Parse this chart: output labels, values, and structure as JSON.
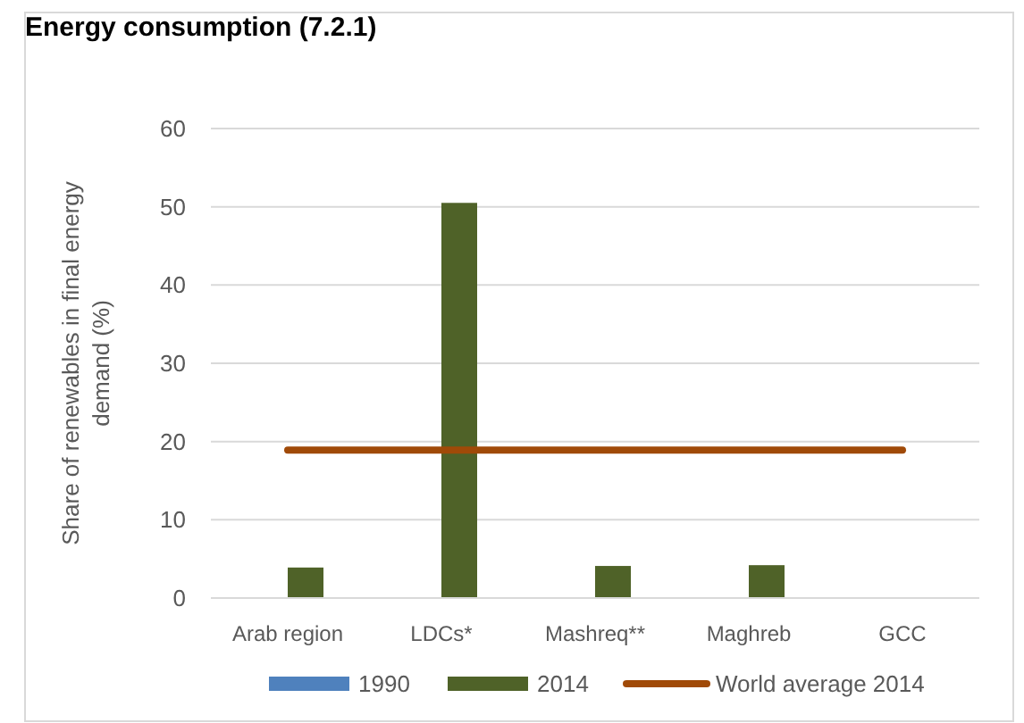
{
  "chart_data": {
    "type": "bar",
    "title": "Energy consumption (7.2.1)",
    "ylabel": "Share of renewables in final energy demand (%)",
    "categories": [
      "Arab region",
      "LDCs*",
      "Mashreq**",
      "Maghreb",
      "GCC"
    ],
    "series": [
      {
        "name": "1990",
        "color": "#4f81bd",
        "values": [
          null,
          null,
          null,
          null,
          null
        ]
      },
      {
        "name": "2014",
        "color": "#4f6228",
        "values": [
          3.9,
          50.5,
          4.1,
          4.2,
          0
        ]
      },
      {
        "name": "World average 2014",
        "type": "line",
        "color": "#a04a08",
        "values": [
          18.9,
          18.9,
          18.9,
          18.9,
          18.9
        ]
      }
    ],
    "ylim": [
      0,
      60
    ],
    "yticks": [
      0,
      10,
      20,
      30,
      40,
      50,
      60
    ],
    "grid": "y",
    "legend": "bottom"
  }
}
